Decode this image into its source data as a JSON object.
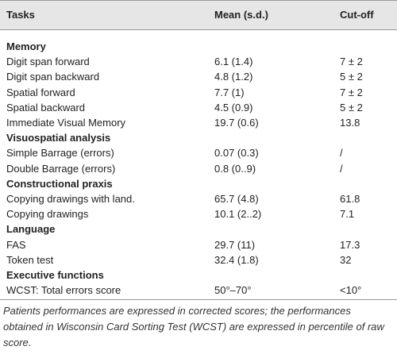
{
  "table": {
    "header": [
      "Tasks",
      "Mean (s.d.)",
      "Cut-off"
    ],
    "sections": [
      {
        "title": "Memory",
        "rows": [
          [
            "Digit span forward",
            "6.1 (1.4)",
            "7 ± 2"
          ],
          [
            "Digit span backward",
            "4.8 (1.2)",
            "5 ± 2"
          ],
          [
            "Spatial forward",
            "7.7 (1)",
            "7 ± 2"
          ],
          [
            "Spatial backward",
            "4.5 (0.9)",
            "5 ± 2"
          ],
          [
            "Immediate Visual Memory",
            "19.7 (0.6)",
            "13.8"
          ]
        ]
      },
      {
        "title": "Visuospatial analysis",
        "rows": [
          [
            "Simple Barrage (errors)",
            "0.07 (0.3)",
            "/"
          ],
          [
            "Double Barrage (errors)",
            "0.8 (0..9)",
            "/"
          ]
        ]
      },
      {
        "title": "Constructional praxis",
        "rows": [
          [
            "Copying drawings with land.",
            "65.7 (4.8)",
            "61.8"
          ],
          [
            "Copying drawings",
            "10.1 (2..2)",
            "7.1"
          ]
        ]
      },
      {
        "title": "Language",
        "rows": [
          [
            "FAS",
            "29.7 (11)",
            "17.3"
          ],
          [
            "Token test",
            "32.4 (1.8)",
            "32"
          ]
        ]
      },
      {
        "title": "Executive functions",
        "rows": [
          [
            "WCST: Total errors score",
            "50°–70°",
            "<10°"
          ]
        ]
      }
    ],
    "footnote": "Patients performances are expressed in corrected scores; the performances obtained in Wisconsin Card Sorting Test (WCST) are expressed in percentile of raw score."
  }
}
